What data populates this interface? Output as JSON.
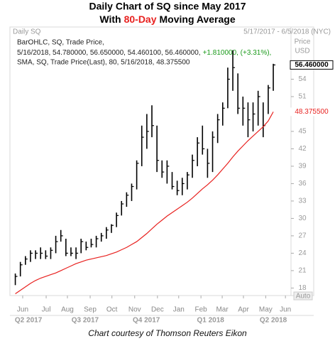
{
  "chart_data": {
    "type": "ohlc",
    "title": "Daily Chart of SQ since May 2017",
    "subtitle_parts": [
      "With",
      "80-Day",
      "Moving Average"
    ],
    "panel_title": "Daily SQ",
    "date_range": "5/17/2017 - 6/5/2018 (NYC)",
    "y_axis_label": [
      "Price",
      "USD"
    ],
    "auto_label": "Auto",
    "footer": "Chart courtesy of Thomson Reuters Eikon",
    "categories": [
      null,
      null,
      null,
      null,
      null,
      null,
      null,
      null,
      null,
      null,
      null,
      null,
      null,
      null,
      null,
      null,
      null,
      null,
      null,
      null,
      null,
      null,
      null,
      null,
      null,
      null,
      null,
      null,
      null,
      null,
      null,
      null,
      null,
      null,
      null,
      null,
      null,
      null,
      null,
      null,
      null,
      null,
      null,
      null,
      null,
      null,
      null,
      null,
      null,
      null,
      null,
      null,
      null,
      null,
      null
    ],
    "xticks": [
      {
        "value": 1.46,
        "label": "Jun"
      },
      {
        "value": 6.1,
        "label": "Jul"
      },
      {
        "value": 10.3,
        "label": "Aug"
      },
      {
        "value": 14.8,
        "label": "Sep"
      },
      {
        "value": 19.1,
        "label": "Oct"
      },
      {
        "value": 23.6,
        "label": "Nov"
      },
      {
        "value": 28.1,
        "label": "Dec"
      },
      {
        "value": 32.3,
        "label": "Jan"
      },
      {
        "value": 36.7,
        "label": "Feb"
      },
      {
        "value": 40.9,
        "label": "Mar"
      },
      {
        "value": 45.1,
        "label": "Apr"
      },
      {
        "value": 49.5,
        "label": "May"
      },
      {
        "value": 53.4,
        "label": "Jun"
      }
    ],
    "quarters": [
      {
        "value": 2.6,
        "label": "Q2 2017"
      },
      {
        "value": 13.8,
        "label": "Q3 2017"
      },
      {
        "value": 25.9,
        "label": "Q4 2017"
      },
      {
        "value": 38.6,
        "label": "Q1 2018"
      },
      {
        "value": 51,
        "label": "Q2 2018"
      }
    ],
    "ylim": [
      16.7,
      63
    ],
    "yticks": [
      18,
      21,
      24,
      27,
      30,
      33,
      36,
      39,
      42,
      45,
      48,
      51,
      54
    ],
    "series": [
      {
        "name": "BarOHLC, SQ, Trade Price,",
        "detail": [
          "5/16/2018, 54.780000, 56.650000, 54.460100, 56.460000,",
          "+1.810000, (+3.31%),"
        ],
        "color": "#000000",
        "detail_color": "#1a9a1a",
        "high": [
          20.5,
          22.5,
          23.5,
          24.5,
          24.5,
          25,
          24.5,
          25,
          27,
          28,
          26.5,
          25,
          25,
          26.5,
          26,
          26.5,
          27,
          27.5,
          28.5,
          29,
          31,
          33,
          34.5,
          36,
          40,
          46,
          48,
          49.5,
          46,
          40,
          40,
          38,
          36.5,
          37,
          38,
          41,
          44,
          46,
          42,
          45,
          48,
          50,
          56,
          59,
          55,
          51,
          50,
          50,
          52,
          50,
          53,
          56.65,
          null,
          null,
          null
        ],
        "low": [
          18.5,
          20,
          22,
          22.5,
          23,
          23,
          23,
          23,
          24,
          26,
          23.5,
          23.5,
          23,
          24,
          24.5,
          25,
          25,
          26,
          26.5,
          27.5,
          28.5,
          30.5,
          32,
          33,
          35,
          39,
          42,
          44,
          38,
          37,
          36,
          35,
          34,
          34,
          35,
          37,
          39,
          41,
          37,
          38,
          43,
          46,
          49,
          52,
          48,
          46,
          44,
          45,
          46,
          44,
          48,
          52,
          null,
          null,
          null
        ],
        "close": [
          20,
          22,
          23,
          24,
          24,
          24,
          23.5,
          24.5,
          26,
          27,
          24,
          24,
          24,
          26,
          25,
          25.5,
          26.5,
          27,
          28,
          28.8,
          30.5,
          32.5,
          34,
          35.5,
          39.5,
          44,
          45,
          46,
          40,
          38,
          39,
          35.5,
          34.8,
          36,
          37.5,
          40,
          43,
          42,
          39.5,
          44,
          47,
          49,
          54,
          56,
          49,
          49,
          47,
          48,
          51,
          46,
          52.5,
          56.46,
          null,
          null,
          null
        ],
        "value_labels": [
          null,
          null,
          null,
          null,
          null,
          null,
          null,
          null,
          null,
          null,
          null,
          null,
          null,
          null,
          null,
          null,
          null,
          null,
          null,
          null,
          null,
          null,
          null,
          null,
          null,
          null,
          null,
          null,
          null,
          null,
          null,
          null,
          null,
          null,
          null,
          null,
          null,
          null,
          null,
          null,
          null,
          null,
          null,
          null,
          null,
          null,
          null,
          null,
          null,
          null,
          null,
          "56.460000",
          null,
          null,
          null
        ]
      },
      {
        "name": "SMA, SQ, Trade Price(Last), 80, 5/16/2018, 48.375500",
        "color": "#e8211f",
        "values": [
          17,
          17.6,
          18.2,
          18.8,
          19.3,
          19.7,
          20,
          20.3,
          20.6,
          21,
          21.4,
          21.8,
          22.2,
          22.5,
          22.8,
          23,
          23.2,
          23.4,
          23.6,
          23.9,
          24.2,
          24.6,
          25,
          25.5,
          26,
          26.7,
          27.4,
          28.2,
          29,
          29.7,
          30.4,
          31,
          31.6,
          32.2,
          32.8,
          33.5,
          34.3,
          35.1,
          35.8,
          36.6,
          37.5,
          38.5,
          39.5,
          40.6,
          41.6,
          42.5,
          43.4,
          44.2,
          45,
          45.8,
          46.8,
          48.3755,
          null,
          null,
          null
        ],
        "value_labels": [
          null,
          null,
          null,
          null,
          null,
          null,
          null,
          null,
          null,
          null,
          null,
          null,
          null,
          null,
          null,
          null,
          null,
          null,
          null,
          null,
          null,
          null,
          null,
          null,
          null,
          null,
          null,
          null,
          null,
          null,
          null,
          null,
          null,
          null,
          null,
          null,
          null,
          null,
          null,
          null,
          null,
          null,
          null,
          null,
          null,
          null,
          null,
          null,
          null,
          null,
          null,
          "48.375500",
          null,
          null,
          null
        ]
      }
    ]
  }
}
